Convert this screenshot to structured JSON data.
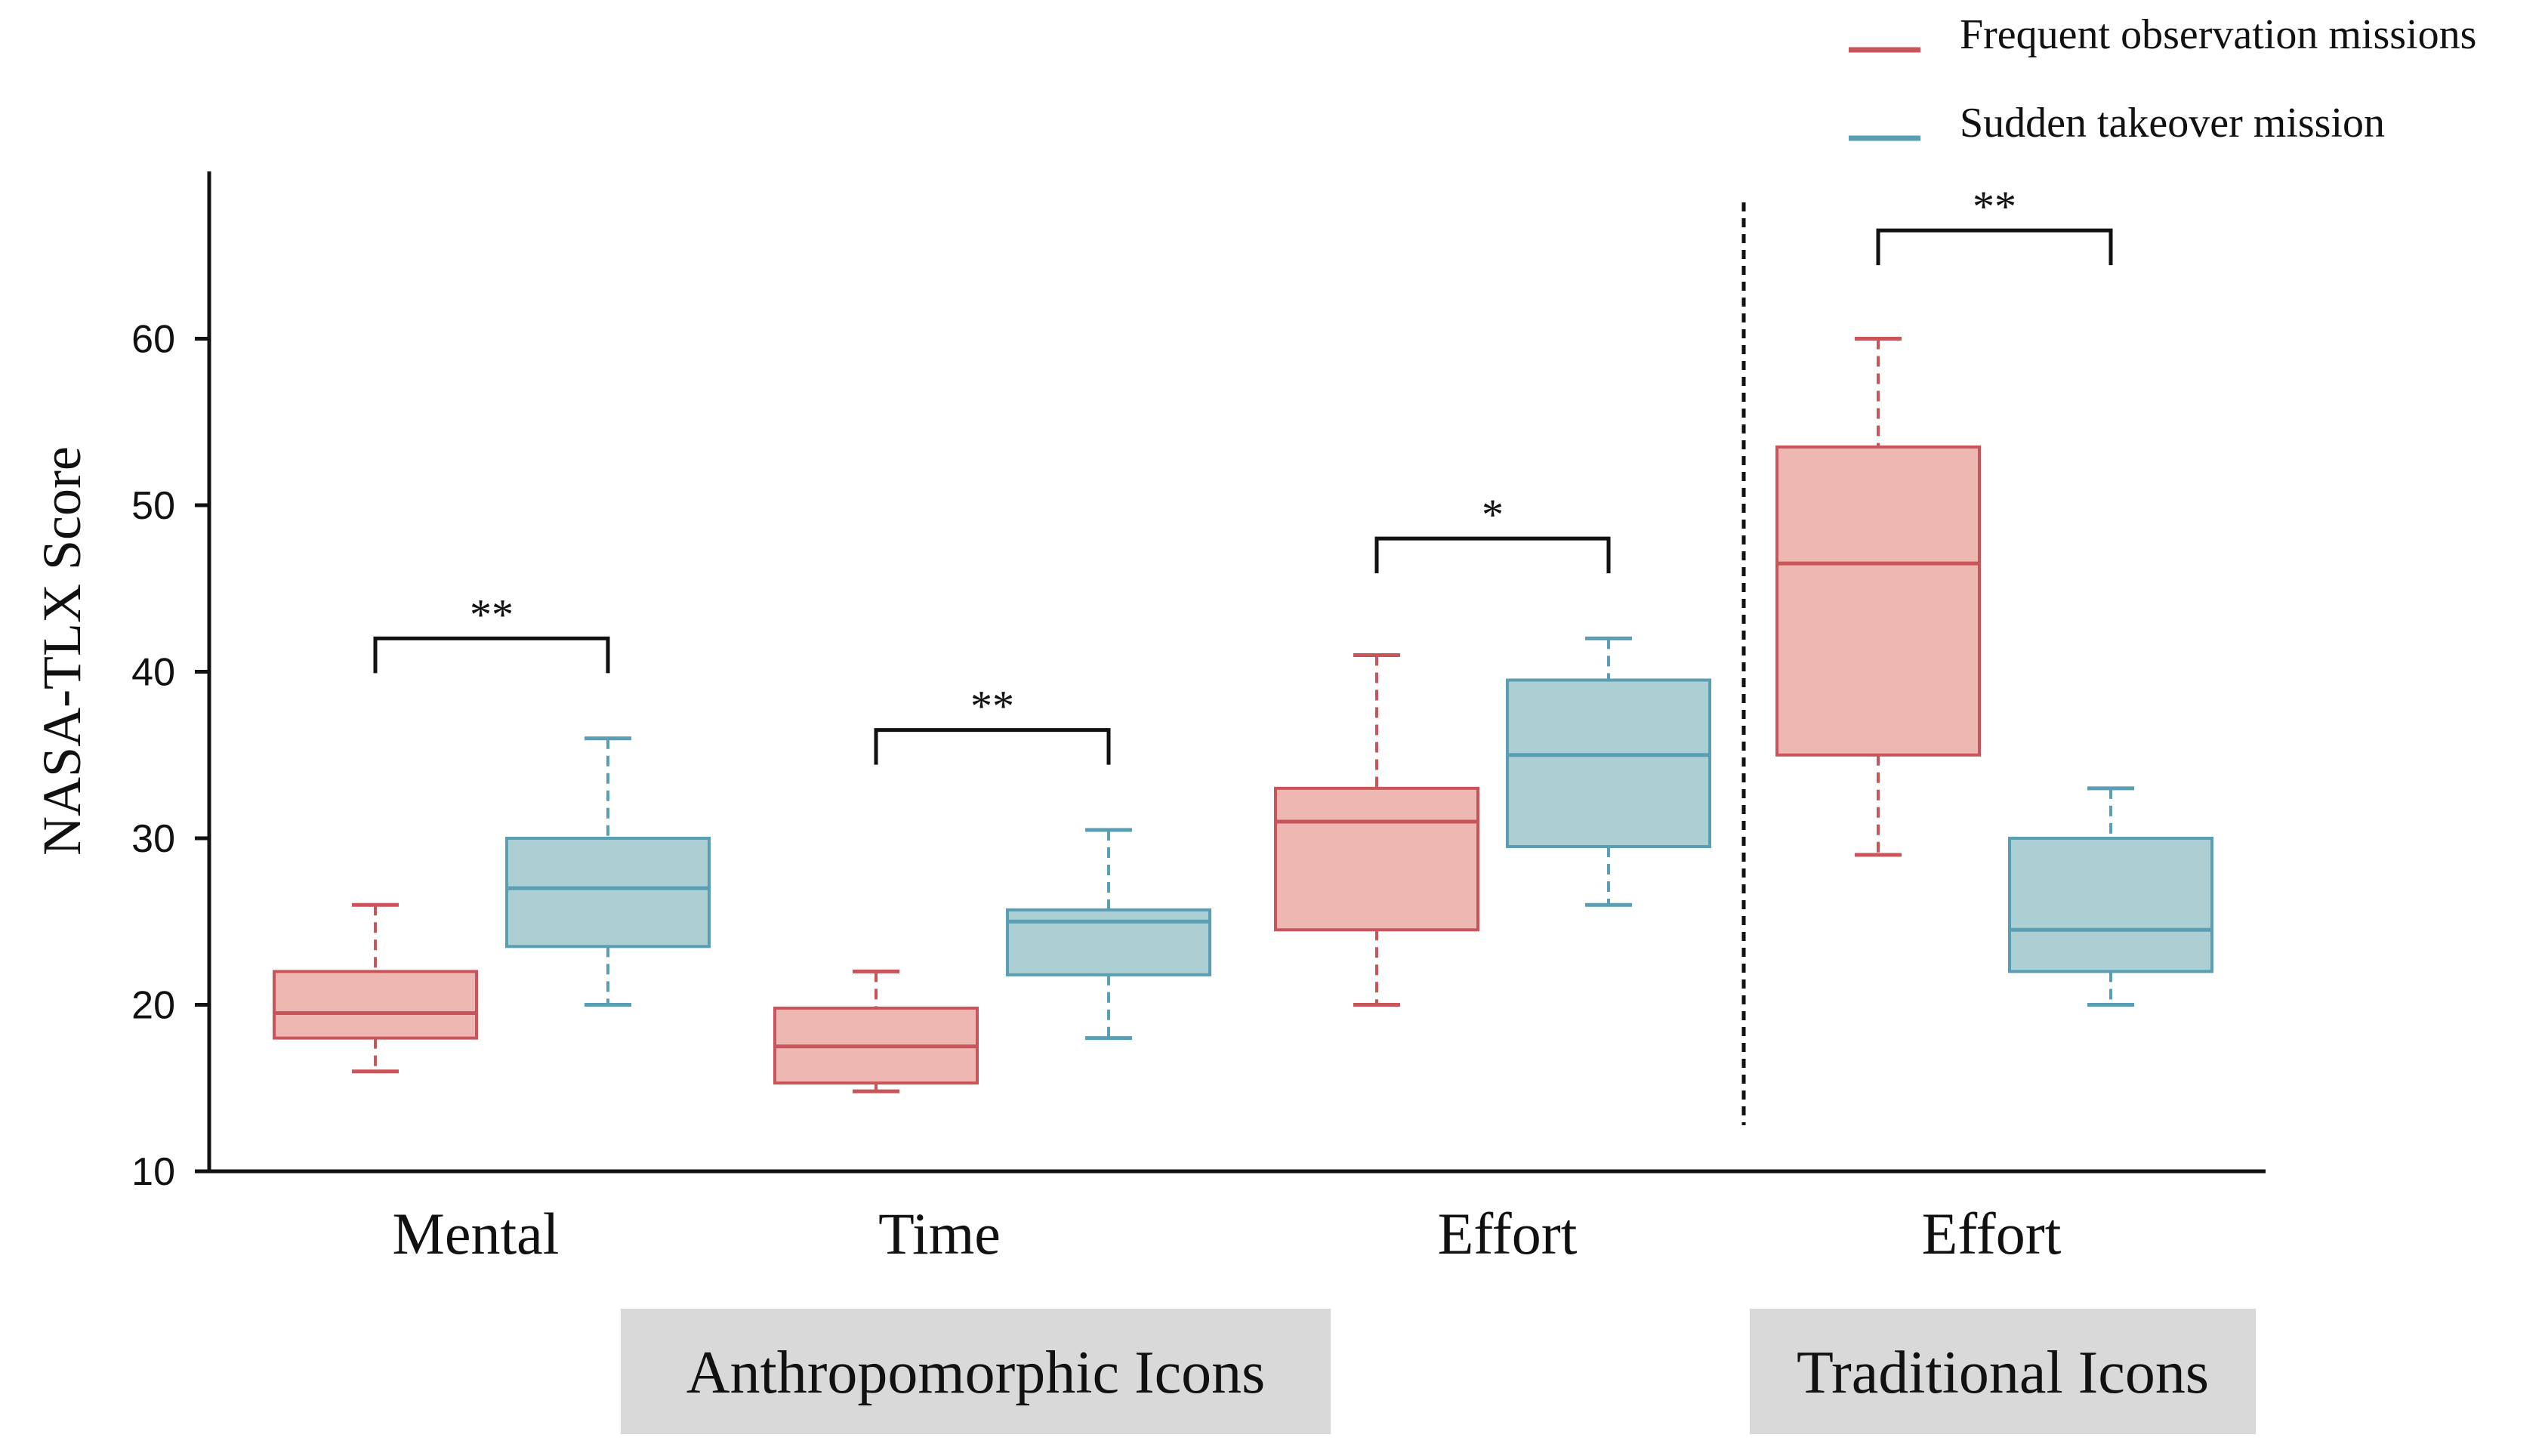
{
  "chart_data": {
    "type": "box",
    "ylabel": "NASA-TLX Score",
    "ylim": [
      10,
      70
    ],
    "yticks": [
      10,
      20,
      30,
      40,
      50,
      60
    ],
    "legend_position": "top-right",
    "series": [
      {
        "name": "Frequent observation missions",
        "color": "#c9555a",
        "fill": "#efb7b1"
      },
      {
        "name": "Sudden takeover mission",
        "color": "#5a9eb3",
        "fill": "#abcfd3"
      }
    ],
    "groups": [
      {
        "label": "Mental",
        "boxes": [
          {
            "series": 0,
            "min": 16,
            "q1": 18,
            "median": 19.5,
            "q3": 22,
            "max": 26
          },
          {
            "series": 1,
            "min": 20,
            "q1": 23.5,
            "median": 27,
            "q3": 30,
            "max": 36
          }
        ],
        "significance": "**",
        "bracket_y": 42
      },
      {
        "label": "Time",
        "boxes": [
          {
            "series": 0,
            "min": 14.8,
            "q1": 15.3,
            "median": 17.5,
            "q3": 19.8,
            "max": 22
          },
          {
            "series": 1,
            "min": 18,
            "q1": 21.8,
            "median": 25,
            "q3": 25.7,
            "max": 30.5
          }
        ],
        "significance": "**",
        "bracket_y": 36.5
      },
      {
        "label": "Effort",
        "boxes": [
          {
            "series": 0,
            "min": 20,
            "q1": 24.5,
            "median": 31,
            "q3": 33,
            "max": 41
          },
          {
            "series": 1,
            "min": 26,
            "q1": 29.5,
            "median": 35,
            "q3": 39.5,
            "max": 42
          }
        ],
        "significance": "*",
        "bracket_y": 48
      },
      {
        "label": "Effort",
        "boxes": [
          {
            "series": 0,
            "min": 29,
            "q1": 35,
            "median": 46.5,
            "q3": 53.5,
            "max": 60
          },
          {
            "series": 1,
            "min": 20,
            "q1": 22,
            "median": 24.5,
            "q3": 30,
            "max": 33
          }
        ],
        "significance": "**",
        "bracket_y": 66.5
      }
    ],
    "categories": [
      {
        "label": "Anthropomorphic Icons",
        "groups": [
          0,
          1,
          2
        ]
      },
      {
        "label": "Traditional Icons",
        "groups": [
          3
        ]
      }
    ]
  }
}
